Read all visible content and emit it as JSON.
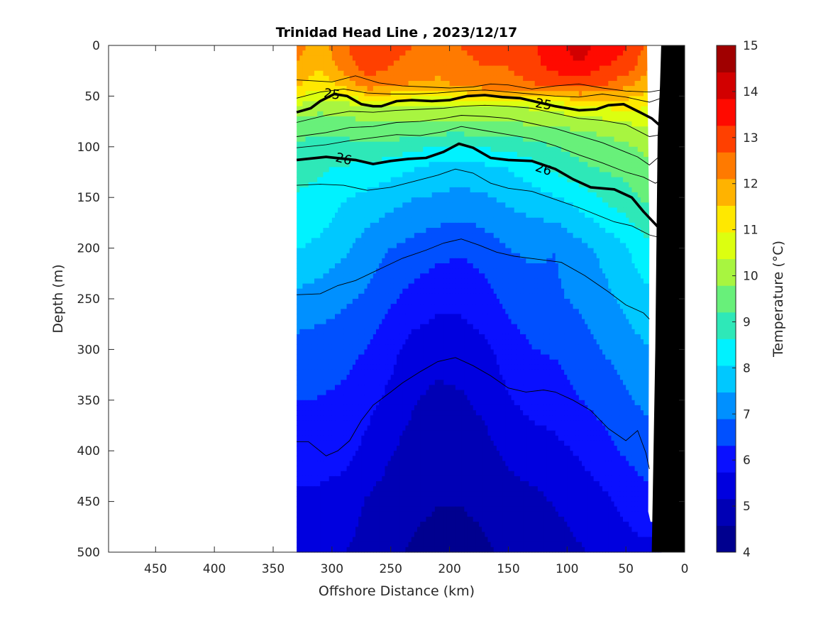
{
  "chart_data": {
    "type": "heatmap",
    "title": "Trinidad Head Line , 2023/12/17",
    "xlabel": "Offshore Distance (km)",
    "ylabel": "Depth (m)",
    "colorbar_label": "Temperature (°C)",
    "xlim": [
      490,
      0
    ],
    "ylim": [
      500,
      0
    ],
    "x_reversed": true,
    "y_reversed": true,
    "x_ticks": [
      450,
      400,
      350,
      300,
      250,
      200,
      150,
      100,
      50,
      0
    ],
    "y_ticks": [
      0,
      50,
      100,
      150,
      200,
      250,
      300,
      350,
      400,
      450,
      500
    ],
    "colorbar_ticks": [
      4,
      5,
      6,
      7,
      8,
      9,
      10,
      11,
      12,
      13,
      14,
      15
    ],
    "colormap": [
      "#00008f",
      "#0000b5",
      "#0000df",
      "#0a10ff",
      "#0050ff",
      "#0090ff",
      "#00c8ff",
      "#00f2ff",
      "#2ee8b8",
      "#68f07a",
      "#a8f540",
      "#dcff10",
      "#ffe800",
      "#ffb300",
      "#ff7a00",
      "#ff4000",
      "#ff0a00",
      "#d20000",
      "#a00000"
    ],
    "levels": [
      4,
      4.5,
      5,
      5.5,
      6,
      6.5,
      7,
      7.5,
      8,
      8.5,
      9,
      9.5,
      10,
      10.5,
      11,
      11.5,
      12,
      12.5,
      13,
      13.5,
      14,
      14.5,
      15
    ],
    "section_x_range_km": [
      330,
      20
    ],
    "stations_km": [
      330,
      310,
      290,
      270,
      250,
      230,
      210,
      190,
      170,
      150,
      130,
      110,
      90,
      70,
      50,
      35,
      20
    ],
    "depths_m": [
      0,
      20,
      40,
      60,
      80,
      100,
      120,
      150,
      200,
      250,
      300,
      350,
      400,
      450,
      500
    ],
    "temperature": [
      [
        12.3,
        11.8,
        12.6,
        13.1,
        12.8,
        12.7,
        12.6,
        12.7,
        12.8,
        12.8,
        13.2,
        13.6,
        14.2,
        13.6,
        13.3,
        12.7,
        12.3
      ],
      [
        12.1,
        11.6,
        12.4,
        13.0,
        12.7,
        12.5,
        12.4,
        12.6,
        12.7,
        12.7,
        13.1,
        13.5,
        13.8,
        13.3,
        13.1,
        12.4,
        11.8
      ],
      [
        11.6,
        11.1,
        11.6,
        12.4,
        12.2,
        12.0,
        11.9,
        12.2,
        12.4,
        12.4,
        12.6,
        12.8,
        12.9,
        12.7,
        12.2,
        11.8,
        11.2
      ],
      [
        10.3,
        10.0,
        10.1,
        10.3,
        10.4,
        10.3,
        10.2,
        10.3,
        10.3,
        10.3,
        10.5,
        10.6,
        10.8,
        11.0,
        11.2,
        11.0,
        10.8
      ],
      [
        9.5,
        9.4,
        9.5,
        9.6,
        9.7,
        9.6,
        9.6,
        9.6,
        9.7,
        9.7,
        9.7,
        9.8,
        9.9,
        10.0,
        10.2,
        10.4,
        10.5
      ],
      [
        9.1,
        9.0,
        9.0,
        9.1,
        9.0,
        8.8,
        8.6,
        8.5,
        8.7,
        8.8,
        9.0,
        9.2,
        9.4,
        9.5,
        9.7,
        9.9,
        10.0
      ],
      [
        8.8,
        8.7,
        8.6,
        8.5,
        8.3,
        8.1,
        7.9,
        7.8,
        7.95,
        8.1,
        8.4,
        8.8,
        9.1,
        9.3,
        9.4,
        9.6,
        9.7
      ],
      [
        8.6,
        8.5,
        8.1,
        7.9,
        7.7,
        7.5,
        7.4,
        7.3,
        7.4,
        7.6,
        7.8,
        8.0,
        8.3,
        8.7,
        9.0,
        9.3,
        9.4
      ],
      [
        8.1,
        7.9,
        7.6,
        7.2,
        6.9,
        6.7,
        6.5,
        6.4,
        6.6,
        6.9,
        7.0,
        6.9,
        7.3,
        7.6,
        8.0,
        8.4,
        8.6
      ],
      [
        7.3,
        7.2,
        7.0,
        6.8,
        6.4,
        6.1,
        5.9,
        5.9,
        6.1,
        6.5,
        6.7,
        6.8,
        7.0,
        7.3,
        7.6,
        7.9,
        7.9
      ],
      [
        6.7,
        6.6,
        6.5,
        6.3,
        5.9,
        5.5,
        5.4,
        5.4,
        5.6,
        6.0,
        6.3,
        6.4,
        6.6,
        6.9,
        7.2,
        7.4,
        7.4
      ],
      [
        6.3,
        6.3,
        6.2,
        5.9,
        5.6,
        5.2,
        5.0,
        5.1,
        5.3,
        5.7,
        5.9,
        6.0,
        6.3,
        6.5,
        6.8,
        7.0,
        7.0
      ],
      [
        6.0,
        6.0,
        5.9,
        5.6,
        5.2,
        4.9,
        4.8,
        4.8,
        5.0,
        5.3,
        5.5,
        5.6,
        5.8,
        6.1,
        6.4,
        6.6,
        6.6
      ],
      [
        5.6,
        5.6,
        5.5,
        5.1,
        4.9,
        4.7,
        4.6,
        4.6,
        4.7,
        4.9,
        5.0,
        5.2,
        5.4,
        5.6,
        5.9,
        6.1,
        6.1
      ],
      [
        5.3,
        5.3,
        5.2,
        4.9,
        4.7,
        4.5,
        4.4,
        4.4,
        4.5,
        4.7,
        4.8,
        4.9,
        5.1,
        5.3,
        5.5,
        5.6,
        5.6
      ]
    ],
    "density_contour_labels": [
      {
        "label": "25",
        "x_km": 300,
        "depth_m": 48,
        "angle": 8
      },
      {
        "label": "25",
        "x_km": 120,
        "depth_m": 58,
        "angle": 10
      },
      {
        "label": "26",
        "x_km": 290,
        "depth_m": 112,
        "angle": 14
      },
      {
        "label": "26",
        "x_km": 120,
        "depth_m": 122,
        "angle": 18
      }
    ],
    "density_contours_bold": [
      {
        "name": "25",
        "points": [
          [
            330,
            66
          ],
          [
            318,
            62
          ],
          [
            310,
            55
          ],
          [
            298,
            48
          ],
          [
            287,
            50
          ],
          [
            275,
            58
          ],
          [
            265,
            60
          ],
          [
            258,
            60
          ],
          [
            245,
            55
          ],
          [
            232,
            54
          ],
          [
            215,
            55
          ],
          [
            200,
            54
          ],
          [
            185,
            50
          ],
          [
            170,
            49
          ],
          [
            155,
            51
          ],
          [
            140,
            52
          ],
          [
            125,
            56
          ],
          [
            110,
            60
          ],
          [
            90,
            64
          ],
          [
            75,
            63
          ],
          [
            65,
            59
          ],
          [
            52,
            58
          ],
          [
            38,
            66
          ],
          [
            28,
            72
          ],
          [
            22,
            78
          ],
          [
            20,
            74
          ]
        ]
      },
      {
        "name": "26",
        "points": [
          [
            330,
            113
          ],
          [
            305,
            110
          ],
          [
            280,
            113
          ],
          [
            265,
            117
          ],
          [
            250,
            114
          ],
          [
            235,
            112
          ],
          [
            220,
            111
          ],
          [
            205,
            105
          ],
          [
            192,
            97
          ],
          [
            180,
            101
          ],
          [
            165,
            111
          ],
          [
            150,
            113
          ],
          [
            130,
            114
          ],
          [
            110,
            122
          ],
          [
            95,
            132
          ],
          [
            80,
            140
          ],
          [
            60,
            142
          ],
          [
            45,
            150
          ],
          [
            35,
            164
          ],
          [
            22,
            180
          ],
          [
            20,
            182
          ]
        ]
      }
    ],
    "density_contours_thin": [
      {
        "points": [
          [
            330,
            34
          ],
          [
            300,
            36
          ],
          [
            280,
            30
          ],
          [
            260,
            37
          ],
          [
            240,
            40
          ],
          [
            220,
            41
          ],
          [
            200,
            42
          ],
          [
            180,
            41
          ],
          [
            165,
            38
          ],
          [
            150,
            39
          ],
          [
            130,
            43
          ],
          [
            110,
            40
          ],
          [
            90,
            38
          ],
          [
            70,
            42
          ],
          [
            50,
            45
          ],
          [
            30,
            46
          ],
          [
            20,
            44
          ]
        ]
      },
      {
        "points": [
          [
            330,
            52
          ],
          [
            310,
            46
          ],
          [
            290,
            43
          ],
          [
            270,
            47
          ],
          [
            250,
            48
          ],
          [
            230,
            48
          ],
          [
            210,
            47
          ],
          [
            190,
            45
          ],
          [
            170,
            44
          ],
          [
            150,
            46
          ],
          [
            130,
            48
          ],
          [
            110,
            50
          ],
          [
            90,
            51
          ],
          [
            70,
            48
          ],
          [
            50,
            51
          ],
          [
            30,
            56
          ],
          [
            20,
            52
          ]
        ]
      },
      {
        "points": [
          [
            330,
            76
          ],
          [
            305,
            69
          ],
          [
            285,
            65
          ],
          [
            265,
            66
          ],
          [
            245,
            64
          ],
          [
            225,
            63
          ],
          [
            205,
            62
          ],
          [
            190,
            60
          ],
          [
            170,
            59
          ],
          [
            150,
            60
          ],
          [
            130,
            62
          ],
          [
            110,
            67
          ],
          [
            90,
            72
          ],
          [
            70,
            74
          ],
          [
            50,
            78
          ],
          [
            30,
            90
          ],
          [
            20,
            88
          ]
        ]
      },
      {
        "points": [
          [
            330,
            90
          ],
          [
            305,
            86
          ],
          [
            285,
            81
          ],
          [
            265,
            80
          ],
          [
            245,
            76
          ],
          [
            225,
            75
          ],
          [
            205,
            72
          ],
          [
            190,
            69
          ],
          [
            170,
            70
          ],
          [
            150,
            72
          ],
          [
            130,
            77
          ],
          [
            110,
            82
          ],
          [
            90,
            89
          ],
          [
            70,
            96
          ],
          [
            55,
            103
          ],
          [
            40,
            110
          ],
          [
            30,
            118
          ],
          [
            20,
            108
          ]
        ]
      },
      {
        "points": [
          [
            330,
            101
          ],
          [
            305,
            98
          ],
          [
            285,
            94
          ],
          [
            265,
            91
          ],
          [
            245,
            88
          ],
          [
            225,
            89
          ],
          [
            205,
            85
          ],
          [
            190,
            80
          ],
          [
            170,
            84
          ],
          [
            150,
            88
          ],
          [
            130,
            92
          ],
          [
            110,
            99
          ],
          [
            90,
            108
          ],
          [
            70,
            116
          ],
          [
            50,
            125
          ],
          [
            35,
            130
          ],
          [
            25,
            136
          ],
          [
            20,
            133
          ]
        ]
      },
      {
        "points": [
          [
            330,
            138
          ],
          [
            310,
            137
          ],
          [
            290,
            138
          ],
          [
            270,
            143
          ],
          [
            250,
            140
          ],
          [
            230,
            134
          ],
          [
            210,
            128
          ],
          [
            195,
            122
          ],
          [
            180,
            126
          ],
          [
            165,
            136
          ],
          [
            150,
            141
          ],
          [
            130,
            144
          ],
          [
            110,
            152
          ],
          [
            90,
            160
          ],
          [
            75,
            167
          ],
          [
            60,
            174
          ],
          [
            45,
            178
          ],
          [
            30,
            187
          ],
          [
            20,
            190
          ]
        ]
      },
      {
        "points": [
          [
            330,
            246
          ],
          [
            310,
            245
          ],
          [
            295,
            237
          ],
          [
            280,
            232
          ],
          [
            260,
            221
          ],
          [
            240,
            210
          ],
          [
            220,
            202
          ],
          [
            205,
            195
          ],
          [
            190,
            191
          ],
          [
            175,
            197
          ],
          [
            160,
            204
          ],
          [
            145,
            208
          ],
          [
            125,
            211
          ],
          [
            105,
            214
          ],
          [
            85,
            227
          ],
          [
            65,
            243
          ],
          [
            50,
            256
          ],
          [
            35,
            264
          ],
          [
            30,
            270
          ]
        ]
      },
      {
        "points": [
          [
            330,
            391
          ],
          [
            320,
            391
          ],
          [
            305,
            405
          ],
          [
            295,
            400
          ],
          [
            285,
            390
          ],
          [
            275,
            370
          ],
          [
            265,
            355
          ],
          [
            250,
            342
          ],
          [
            240,
            333
          ],
          [
            225,
            322
          ],
          [
            210,
            312
          ],
          [
            195,
            308
          ],
          [
            180,
            316
          ],
          [
            165,
            326
          ],
          [
            150,
            338
          ],
          [
            135,
            342
          ],
          [
            120,
            340
          ],
          [
            110,
            342
          ],
          [
            95,
            350
          ],
          [
            80,
            360
          ],
          [
            65,
            378
          ],
          [
            50,
            390
          ],
          [
            40,
            380
          ],
          [
            33,
            402
          ],
          [
            30,
            418
          ]
        ]
      }
    ],
    "bathymetry": {
      "points": [
        [
          20,
          0
        ],
        [
          21,
          40
        ],
        [
          23,
          90
        ],
        [
          25,
          300
        ],
        [
          28,
          500
        ],
        [
          0,
          500
        ],
        [
          0,
          0
        ]
      ],
      "color": "#000000"
    }
  }
}
